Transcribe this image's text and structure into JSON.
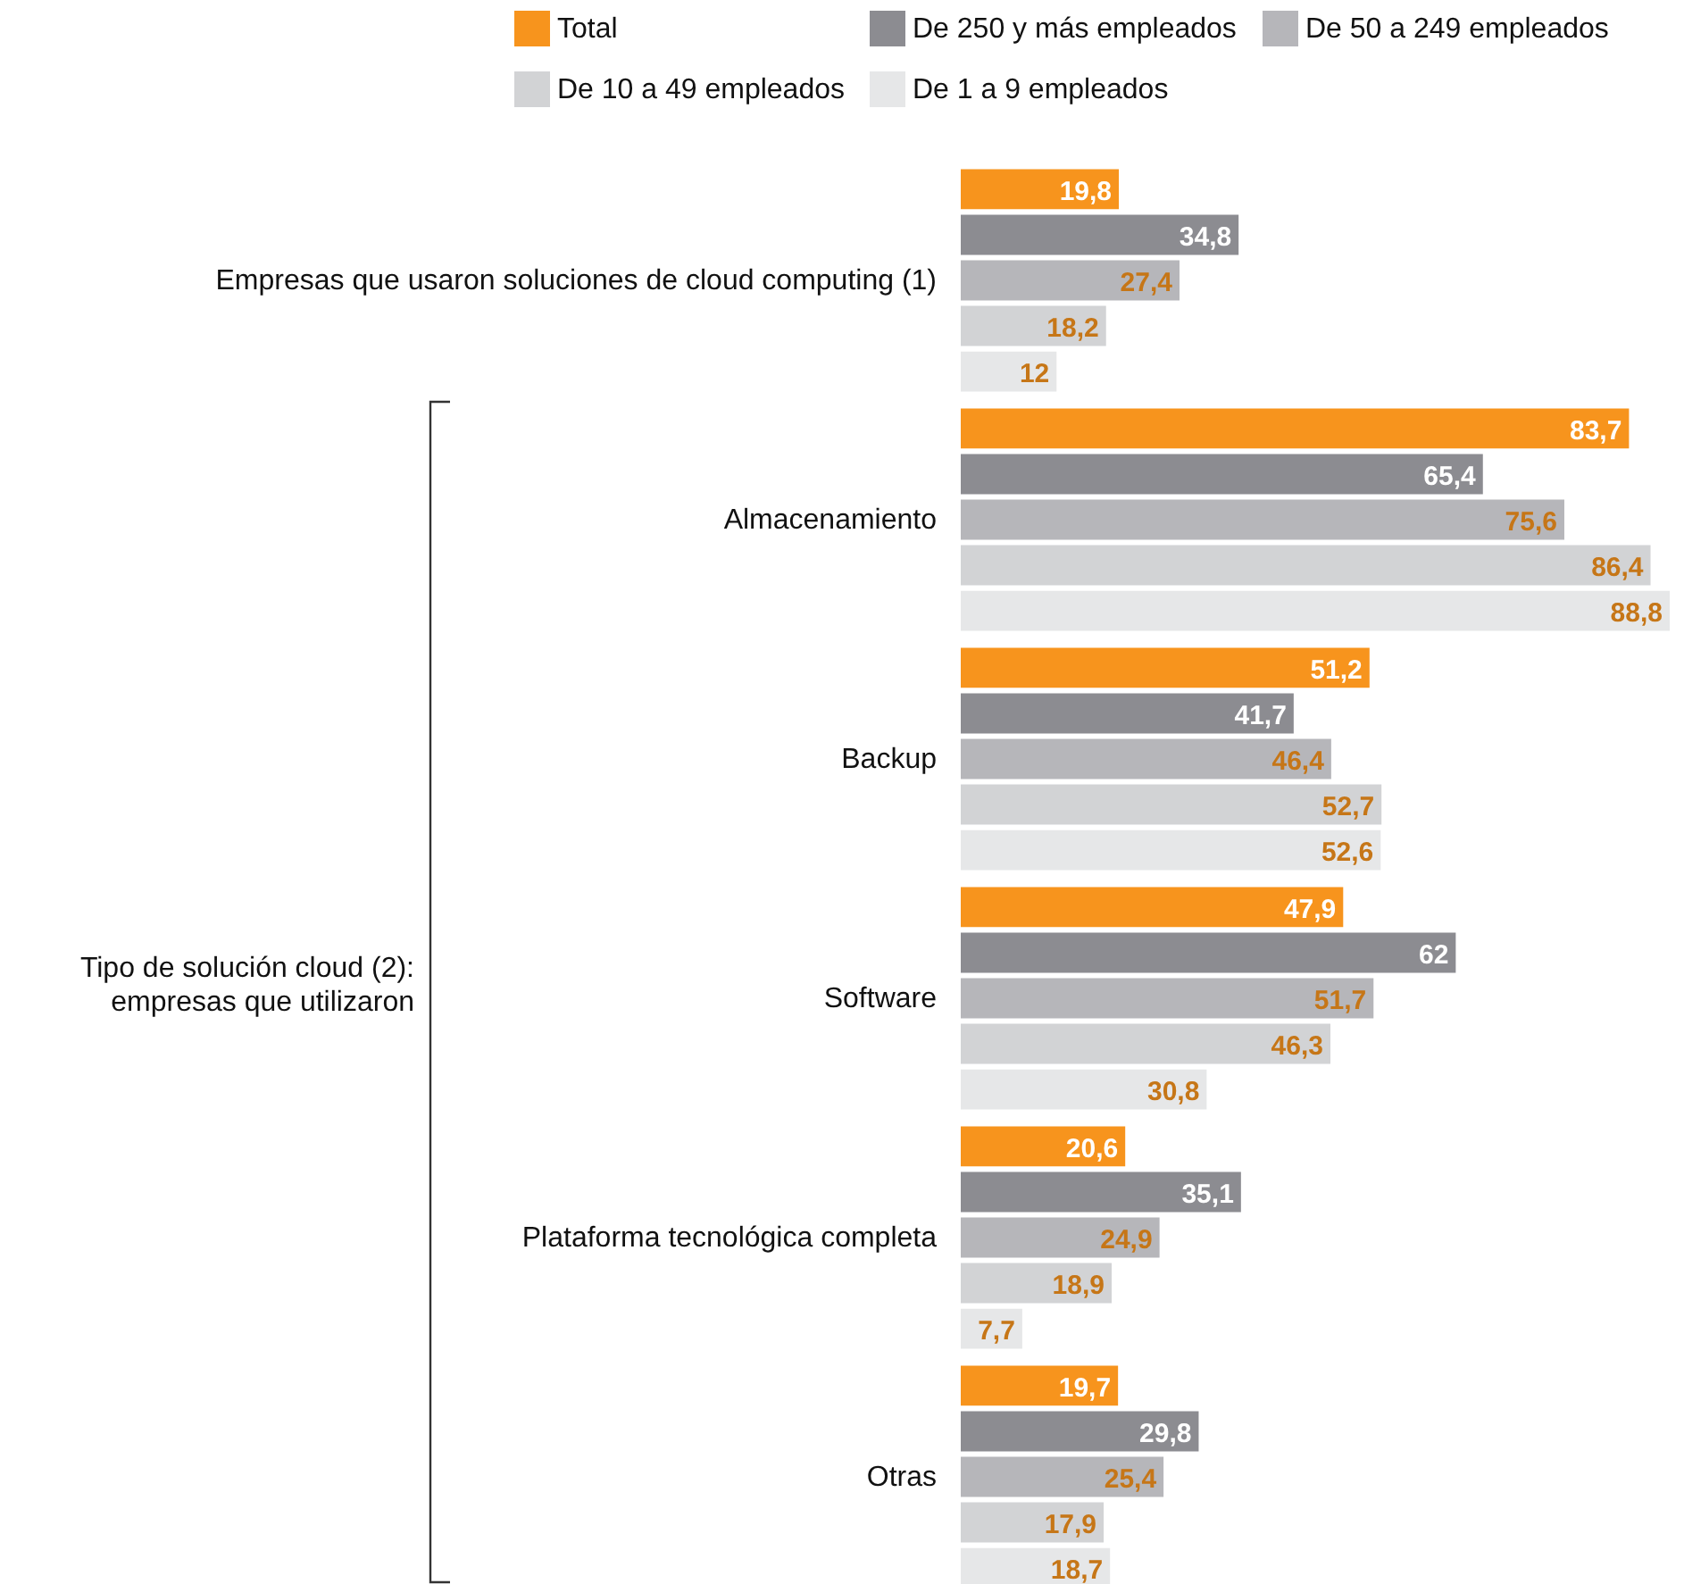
{
  "chart_data": {
    "type": "bar",
    "orientation": "horizontal",
    "legend": "top",
    "categories": [
      "Empresas que usaron soluciones de cloud computing (1)",
      "Almacenamiento",
      "Backup",
      "Software",
      "Plataforma tecnológica completa",
      "Otras"
    ],
    "series": [
      {
        "name": "Total",
        "color": "#f7941d",
        "values": [
          19.8,
          83.7,
          51.2,
          47.9,
          20.6,
          19.7
        ],
        "value_labels": [
          "19,8",
          "83,7",
          "51,2",
          "47,9",
          "20,6",
          "19,7"
        ]
      },
      {
        "name": "De 250 y más empleados",
        "color": "#8c8c91",
        "values": [
          34.8,
          65.4,
          41.7,
          62,
          35.1,
          29.8
        ],
        "value_labels": [
          "34,8",
          "65,4",
          "41,7",
          "62",
          "35,1",
          "29,8"
        ]
      },
      {
        "name": "De 50 a 249 empleados",
        "color": "#b6b6ba",
        "values": [
          27.4,
          75.6,
          46.4,
          51.7,
          24.9,
          25.4
        ],
        "value_labels": [
          "27,4",
          "75,6",
          "46,4",
          "51,7",
          "24,9",
          "25,4"
        ]
      },
      {
        "name": "De 10 a 49 empleados",
        "color": "#d2d3d5",
        "values": [
          18.2,
          86.4,
          52.7,
          46.3,
          18.9,
          17.9
        ],
        "value_labels": [
          "18,2",
          "86,4",
          "52,7",
          "46,3",
          "18,9",
          "17,9"
        ]
      },
      {
        "name": "De 1 a 9 empleados",
        "color": "#e6e7e8",
        "values": [
          12,
          88.8,
          52.6,
          30.8,
          7.7,
          18.7
        ],
        "value_labels": [
          "12",
          "88,8",
          "52,6",
          "30,8",
          "7,7",
          "18,7"
        ]
      }
    ],
    "annotations": [
      "Tipo de solución cloud (2):\nempresas que utilizaron"
    ]
  }
}
